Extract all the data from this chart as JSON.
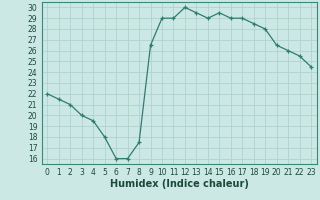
{
  "x": [
    0,
    1,
    2,
    3,
    4,
    5,
    6,
    7,
    8,
    9,
    10,
    11,
    12,
    13,
    14,
    15,
    16,
    17,
    18,
    19,
    20,
    21,
    22,
    23
  ],
  "y": [
    22,
    21.5,
    21,
    20,
    19.5,
    18,
    16,
    16,
    17.5,
    26.5,
    29,
    29,
    30,
    29.5,
    29,
    29.5,
    29,
    29,
    28.5,
    28,
    26.5,
    26,
    25.5,
    24.5
  ],
  "line_color": "#2e7d6e",
  "bg_color": "#cce8e4",
  "grid_color": "#aacfcb",
  "xlabel": "Humidex (Indice chaleur)",
  "xlim": [
    -0.5,
    23.5
  ],
  "ylim": [
    15.5,
    30.5
  ],
  "yticks": [
    16,
    17,
    18,
    19,
    20,
    21,
    22,
    23,
    24,
    25,
    26,
    27,
    28,
    29,
    30
  ],
  "xticks": [
    0,
    1,
    2,
    3,
    4,
    5,
    6,
    7,
    8,
    9,
    10,
    11,
    12,
    13,
    14,
    15,
    16,
    17,
    18,
    19,
    20,
    21,
    22,
    23
  ],
  "label_fontsize": 7,
  "tick_fontsize": 5.5
}
